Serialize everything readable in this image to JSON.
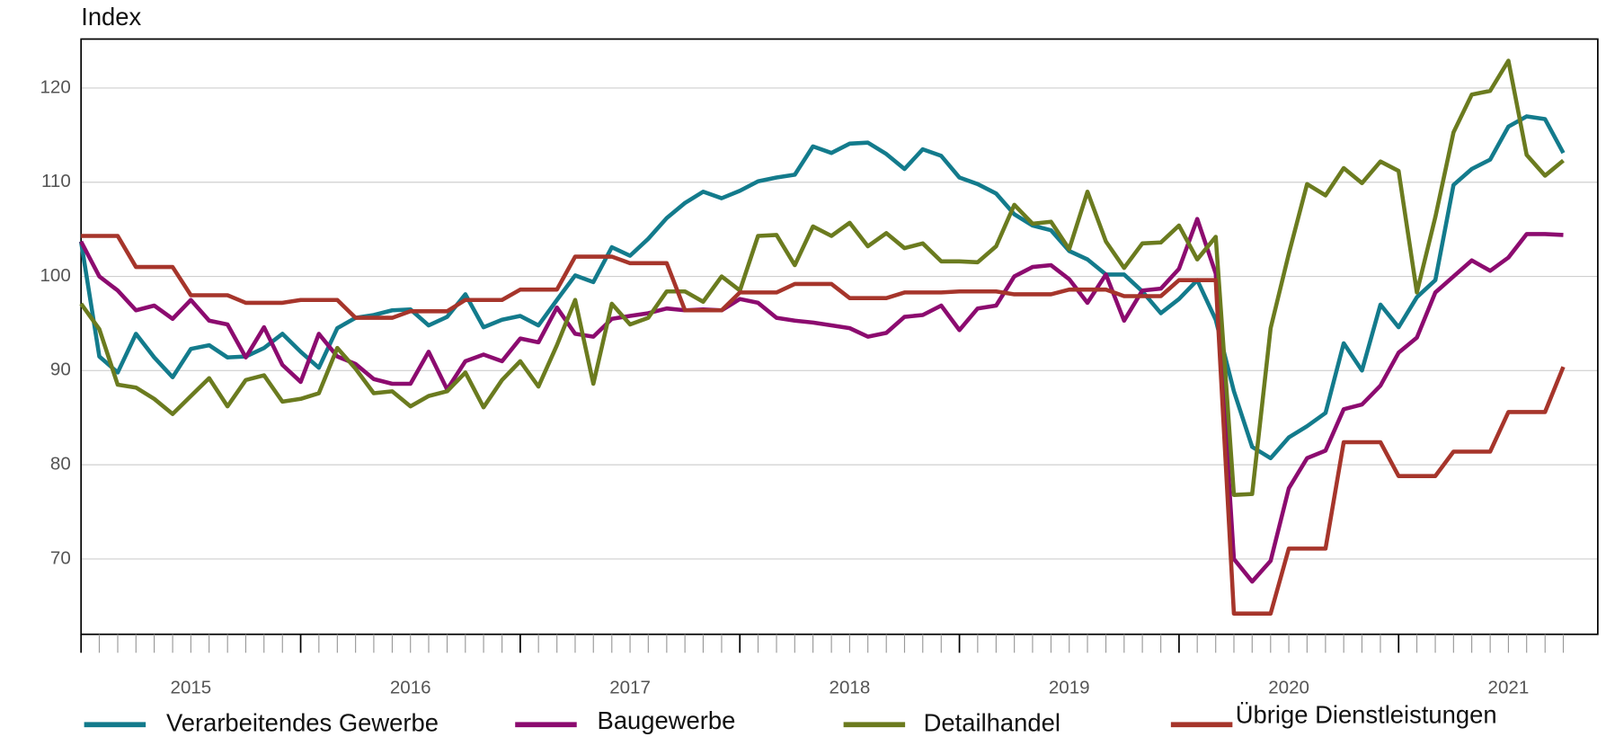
{
  "chart_data": {
    "type": "line",
    "y_label": "Index",
    "x": [
      2015,
      2015.083,
      2015.167,
      2015.25,
      2015.333,
      2015.417,
      2015.5,
      2015.583,
      2015.667,
      2015.75,
      2015.833,
      2015.917,
      2016,
      2016.083,
      2016.167,
      2016.25,
      2016.333,
      2016.417,
      2016.5,
      2016.583,
      2016.667,
      2016.75,
      2016.833,
      2016.917,
      2017,
      2017.083,
      2017.167,
      2017.25,
      2017.333,
      2017.417,
      2017.5,
      2017.583,
      2017.667,
      2017.75,
      2017.833,
      2017.917,
      2018,
      2018.083,
      2018.167,
      2018.25,
      2018.333,
      2018.417,
      2018.5,
      2018.583,
      2018.667,
      2018.75,
      2018.833,
      2018.917,
      2019,
      2019.083,
      2019.167,
      2019.25,
      2019.333,
      2019.417,
      2019.5,
      2019.583,
      2019.667,
      2019.75,
      2019.833,
      2019.917,
      2020,
      2020.083,
      2020.167,
      2020.25,
      2020.333,
      2020.417,
      2020.5,
      2020.583,
      2020.667,
      2020.75,
      2020.833,
      2020.917,
      2021,
      2021.083,
      2021.167,
      2021.25,
      2021.333,
      2021.417,
      2021.5,
      2021.583,
      2021.667,
      2021.75
    ],
    "series": [
      {
        "name": "Verarbeitendes Gewerbe",
        "color": "#137b8c",
        "values": [
          103.7,
          91.5,
          89.8,
          93.9,
          91.4,
          89.3,
          92.3,
          92.7,
          91.4,
          91.5,
          92.4,
          93.9,
          92.0,
          90.3,
          94.5,
          95.6,
          95.9,
          96.4,
          96.5,
          94.8,
          95.7,
          98.1,
          94.6,
          95.4,
          95.8,
          94.8,
          97.5,
          100.1,
          99.4,
          103.1,
          102.2,
          104.0,
          106.2,
          107.8,
          109.0,
          108.3,
          109.1,
          110.1,
          110.5,
          110.8,
          113.8,
          113.1,
          114.1,
          114.2,
          113.0,
          111.4,
          113.5,
          112.8,
          110.5,
          109.8,
          108.8,
          106.6,
          105.4,
          104.9,
          102.7,
          101.8,
          100.2,
          100.2,
          98.4,
          96.1,
          97.6,
          99.6,
          95.4,
          87.8,
          81.9,
          80.7,
          82.9,
          84.1,
          85.5,
          92.9,
          90.0,
          97.0,
          94.6,
          97.8,
          99.6,
          109.7,
          111.4,
          112.4,
          115.9,
          117.0,
          116.7,
          113.1
        ]
      },
      {
        "name": "Baugewerbe",
        "color": "#8c0b6f",
        "values": [
          103.7,
          100.0,
          98.5,
          96.4,
          96.9,
          95.5,
          97.5,
          95.3,
          94.9,
          91.4,
          94.6,
          90.6,
          88.8,
          93.9,
          91.5,
          90.7,
          89.1,
          88.6,
          88.6,
          92.0,
          88.0,
          91.0,
          91.7,
          91.0,
          93.4,
          93.0,
          96.7,
          93.9,
          93.6,
          95.5,
          95.8,
          96.1,
          96.6,
          96.4,
          96.5,
          96.4,
          97.6,
          97.2,
          95.6,
          95.3,
          95.1,
          94.8,
          94.5,
          93.6,
          94.0,
          95.7,
          95.9,
          96.9,
          94.3,
          96.6,
          96.9,
          100.0,
          101.0,
          101.2,
          99.7,
          97.2,
          100.2,
          95.3,
          98.5,
          98.7,
          100.8,
          106.1,
          100.3,
          70.0,
          67.6,
          69.8,
          77.5,
          80.7,
          81.5,
          85.9,
          86.4,
          88.4,
          91.9,
          93.5,
          98.3,
          100.0,
          101.7,
          100.6,
          102.0,
          104.5,
          104.5,
          104.4
        ]
      },
      {
        "name": "Detailhandel",
        "color": "#6b7b1f",
        "values": [
          97.1,
          94.4,
          88.5,
          88.2,
          87.0,
          85.4,
          87.3,
          89.2,
          86.2,
          89.0,
          89.5,
          86.7,
          87.0,
          87.6,
          92.4,
          90.2,
          87.6,
          87.8,
          86.2,
          87.3,
          87.8,
          89.8,
          86.1,
          89.0,
          91.0,
          88.3,
          92.7,
          97.5,
          88.6,
          97.1,
          94.9,
          95.6,
          98.4,
          98.4,
          97.3,
          100.0,
          98.5,
          104.3,
          104.4,
          101.2,
          105.3,
          104.3,
          105.7,
          103.2,
          104.6,
          103.0,
          103.5,
          101.6,
          101.6,
          101.5,
          103.2,
          107.6,
          105.6,
          105.8,
          102.9,
          109.0,
          103.7,
          100.9,
          103.5,
          103.6,
          105.4,
          101.8,
          104.2,
          76.8,
          76.9,
          94.5,
          102.4,
          109.8,
          108.6,
          111.5,
          109.9,
          112.2,
          111.2,
          98.3,
          106.3,
          115.3,
          119.3,
          119.7,
          122.9,
          112.9,
          110.7,
          112.3
        ]
      },
      {
        "name": "Übrige Dienstleistungen",
        "color": "#a6352b",
        "values": [
          104.3,
          104.3,
          104.3,
          101.0,
          101.0,
          101.0,
          98.0,
          98.0,
          98.0,
          97.2,
          97.2,
          97.2,
          97.5,
          97.5,
          97.5,
          95.6,
          95.6,
          95.6,
          96.3,
          96.3,
          96.3,
          97.5,
          97.5,
          97.5,
          98.6,
          98.6,
          98.6,
          102.1,
          102.1,
          102.1,
          101.4,
          101.4,
          101.4,
          96.4,
          96.4,
          96.4,
          98.3,
          98.3,
          98.3,
          99.2,
          99.2,
          99.2,
          97.7,
          97.7,
          97.7,
          98.3,
          98.3,
          98.3,
          98.4,
          98.4,
          98.4,
          98.1,
          98.1,
          98.1,
          98.6,
          98.6,
          98.6,
          97.9,
          97.9,
          97.9,
          99.6,
          99.6,
          99.6,
          64.2,
          64.2,
          64.2,
          71.1,
          71.1,
          71.1,
          82.4,
          82.4,
          82.4,
          78.8,
          78.8,
          78.8,
          81.4,
          81.4,
          81.4,
          85.6,
          85.6,
          85.6,
          90.4
        ]
      }
    ],
    "xlim": [
      2015,
      2021.907
    ],
    "xticks": [
      {
        "value": 2015.5,
        "label": "2015"
      },
      {
        "value": 2016.5,
        "label": "2016"
      },
      {
        "value": 2017.5,
        "label": "2017"
      },
      {
        "value": 2018.5,
        "label": "2018"
      },
      {
        "value": 2019.5,
        "label": "2019"
      },
      {
        "value": 2020.5,
        "label": "2020"
      },
      {
        "value": 2021.5,
        "label": "2021"
      }
    ],
    "ylim": [
      62,
      125.2
    ],
    "yticks": [
      70,
      80,
      90,
      100,
      110,
      120
    ],
    "grid": true,
    "legend": "bottom"
  }
}
